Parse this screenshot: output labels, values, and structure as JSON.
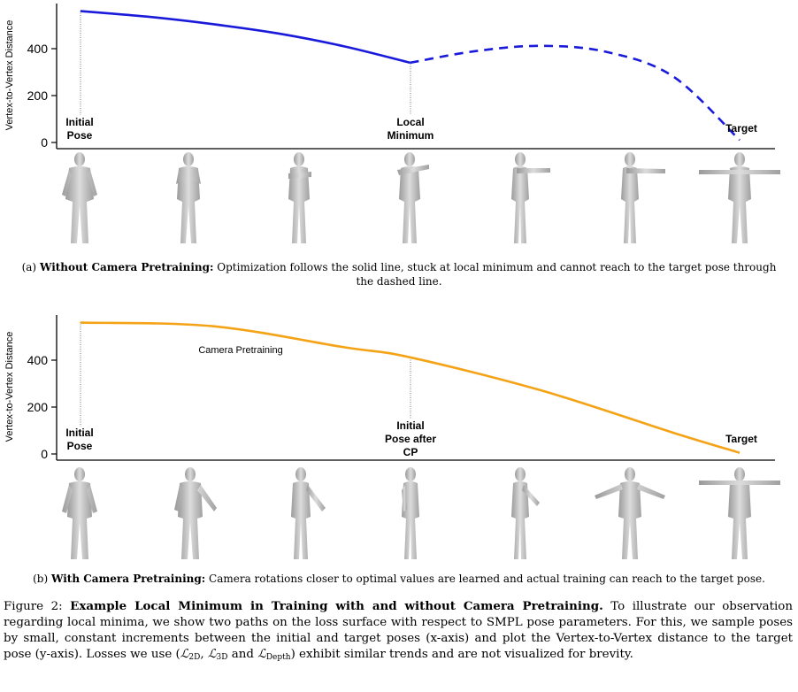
{
  "panel_a": {
    "caption_prefix": "(a)",
    "caption_bold": "Without Camera Pretraining:",
    "caption_text": "Optimization follows the solid line, stuck at local minimum and cannot reach to the target pose through the dashed line.",
    "annotations": {
      "initial_line1": "Initial",
      "initial_line2": "Pose",
      "local_line1": "Local",
      "local_line2": "Minimum",
      "target": "Target"
    },
    "line_color": "#1a1adb"
  },
  "panel_b": {
    "caption_prefix": "(b)",
    "caption_bold": "With Camera Pretraining:",
    "caption_text": "Camera rotations closer to optimal values are learned and actual training can reach to the target pose.",
    "annotations": {
      "initial_line1": "Initial",
      "initial_line2": "Pose",
      "cp_line1": "Initial",
      "cp_line2": "Pose after",
      "cp_line3": "CP",
      "target": "Target",
      "series_label": "Camera Pretraining"
    },
    "line_color": "#f5a316"
  },
  "figure_caption": {
    "label": "Figure 2:",
    "bold": "Example Local Minimum in Training with and without Camera Pretraining.",
    "text_1": "To illustrate our observation regarding local minima, we show two paths on the loss surface with respect to SMPL pose parameters. For this, we sample poses by small, constant increments between the initial and target poses (x-axis) and plot the Vertex-to-Vertex distance to the target pose (y-axis). Losses we use (",
    "loss_2d": "2D",
    "loss_3d": "3D",
    "loss_depth": "Depth",
    "text_2": ") exhibit similar trends and are not visualized for brevity.",
    "and_word": "and"
  },
  "chart_data": [
    {
      "type": "line",
      "title": "",
      "xlabel": "",
      "ylabel": "Vertex-to-Vertex Distance",
      "yticks": [
        0,
        200,
        400
      ],
      "ylim": [
        -20,
        590
      ],
      "xlim": [
        0,
        1
      ],
      "series": [
        {
          "style": "solid",
          "color": "#1a1adb",
          "x": [
            0.0,
            0.1,
            0.2,
            0.3,
            0.4,
            0.5
          ],
          "y": [
            560,
            537,
            505,
            465,
            410,
            340
          ]
        },
        {
          "style": "dashed",
          "color": "#1a1adb",
          "x": [
            0.5,
            0.6,
            0.7,
            0.8,
            0.9,
            1.0
          ],
          "y": [
            340,
            390,
            412,
            385,
            280,
            10
          ]
        }
      ]
    },
    {
      "type": "line",
      "title": "",
      "xlabel": "",
      "ylabel": "Vertex-to-Vertex Distance",
      "yticks": [
        0,
        200,
        400
      ],
      "ylim": [
        -20,
        590
      ],
      "xlim": [
        0,
        1
      ],
      "series": [
        {
          "name": "Camera Pretraining",
          "style": "solid",
          "color": "#f5a316",
          "x": [
            0.0,
            0.2,
            0.4,
            0.5,
            0.7,
            0.9,
            1.0
          ],
          "y": [
            560,
            545,
            455,
            412,
            270,
            90,
            5
          ]
        }
      ]
    }
  ]
}
